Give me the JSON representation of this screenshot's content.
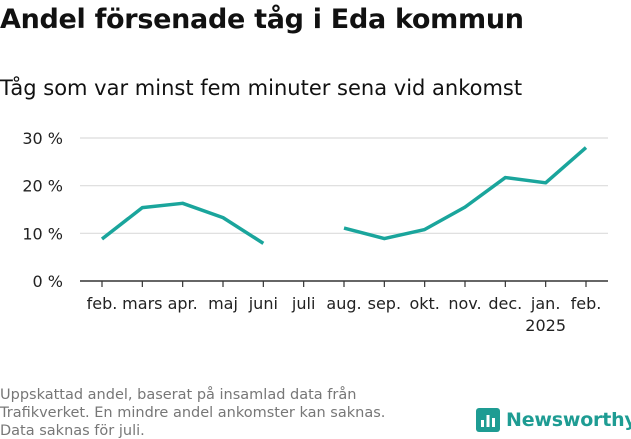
{
  "header": {
    "title": "Andel försenade tåg i Eda kommun",
    "subtitle": "Tåg som var minst fem minuter sena vid ankomst"
  },
  "footnote": {
    "lines": [
      "Uppskattad andel, baserat på insamlad data från",
      "Trafikverket. En mindre andel ankomster kan saknas.",
      "Data saknas för juli."
    ]
  },
  "brand": {
    "name": "Newsworthy",
    "icon": "bar-chart-icon",
    "color": "#1e9c93"
  },
  "chart_data": {
    "type": "line",
    "categories": [
      "feb.",
      "mars",
      "apr.",
      "maj",
      "juni",
      "juli",
      "aug.",
      "sep.",
      "okt.",
      "nov.",
      "dec.",
      "jan.",
      "feb."
    ],
    "year_label": {
      "category_index": 11,
      "text": "2025"
    },
    "series": [
      {
        "color": "#1aa59c",
        "values": [
          8.8,
          15.4,
          16.3,
          13.3,
          7.9,
          null,
          11.1,
          8.9,
          10.8,
          15.5,
          21.7,
          20.6,
          28.0
        ]
      }
    ],
    "yticks": [
      0,
      10,
      20,
      30
    ],
    "ytick_labels": [
      "0 %",
      "10 %",
      "20 %",
      "30 %"
    ],
    "ylim": [
      0,
      30
    ],
    "grid": true,
    "legend": "none"
  }
}
